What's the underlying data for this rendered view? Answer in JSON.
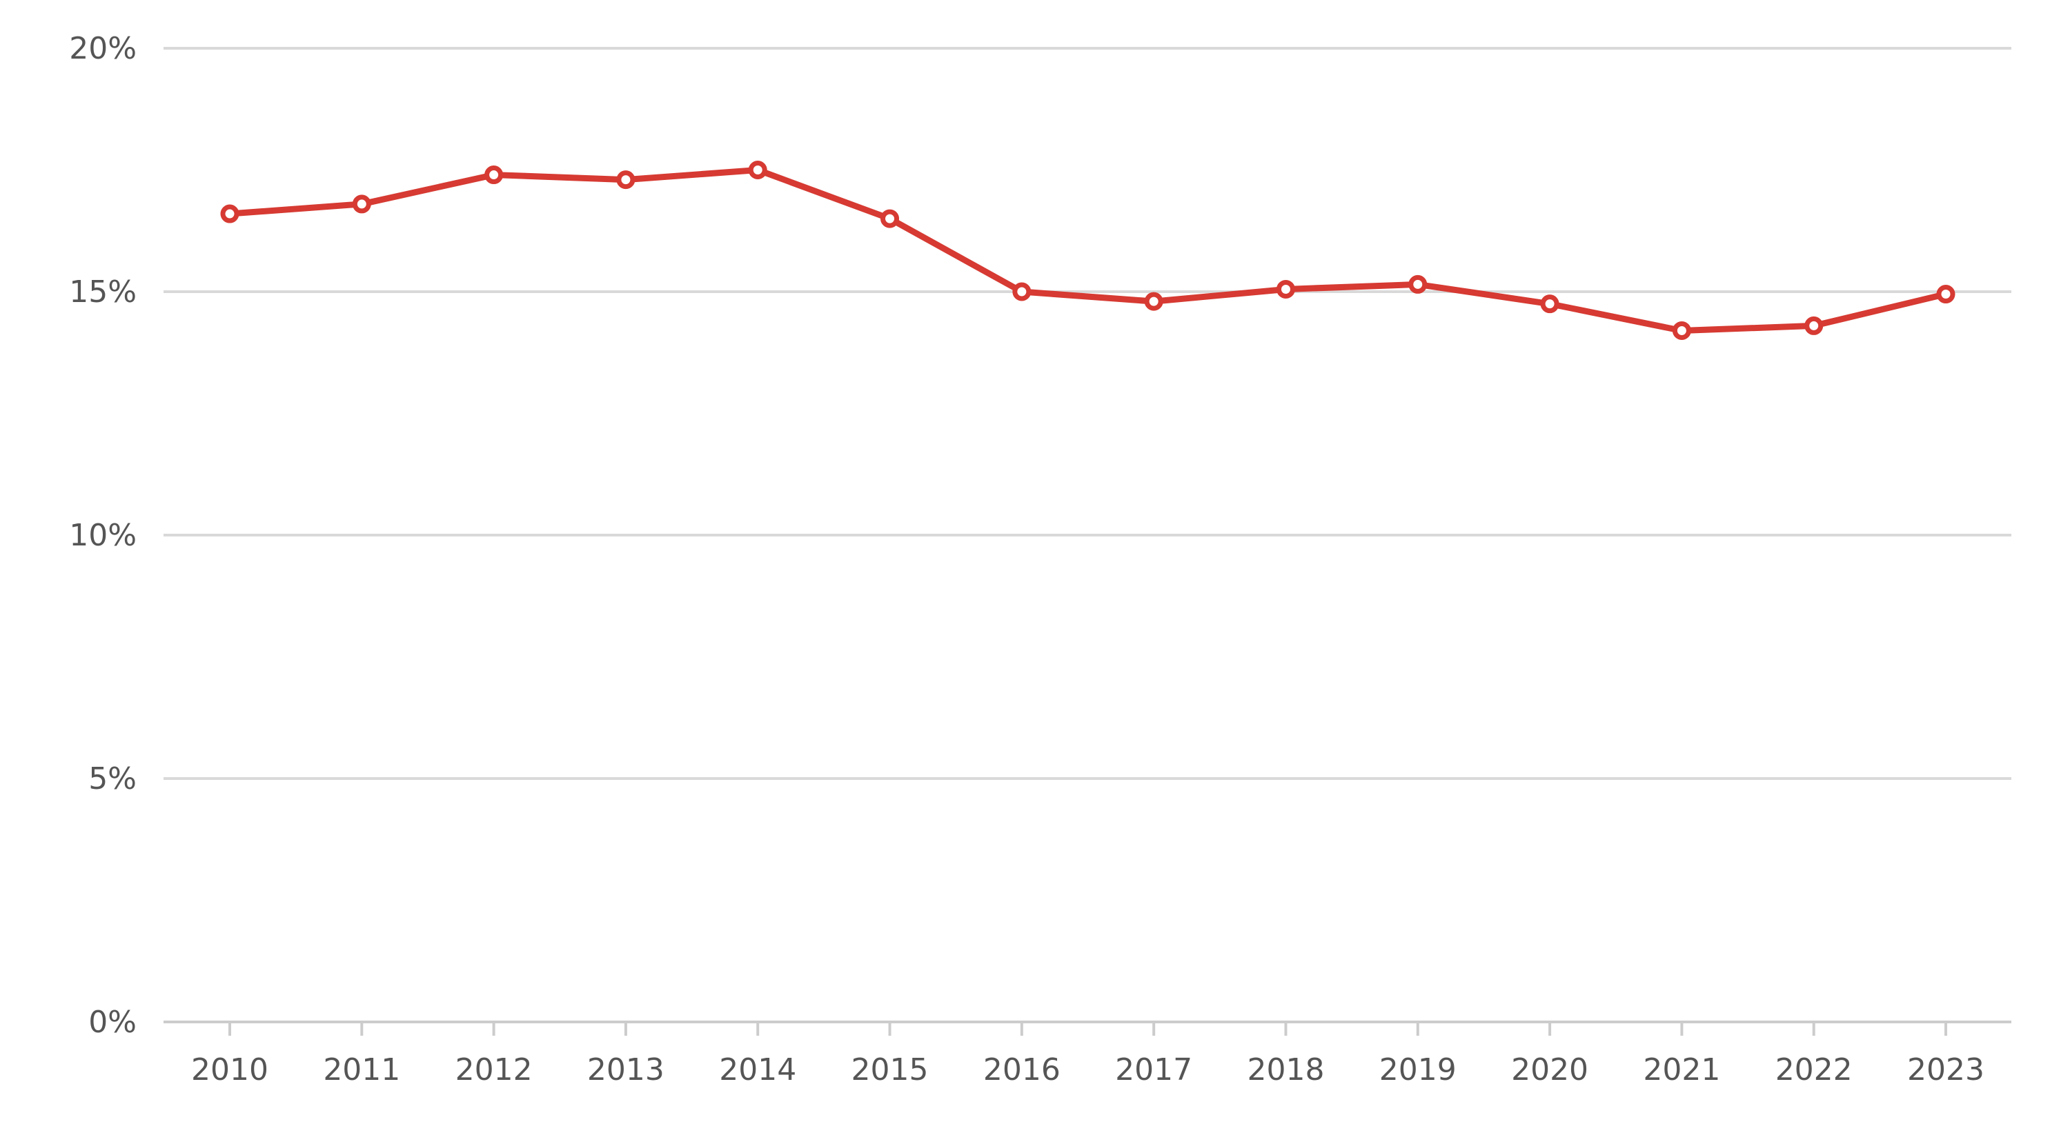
{
  "chart_data": {
    "type": "line",
    "title": "",
    "xlabel": "",
    "ylabel": "",
    "ylim": [
      0,
      20
    ],
    "yticks": [
      0,
      5,
      10,
      15,
      20
    ],
    "ytick_labels": [
      "0%",
      "5%",
      "10%",
      "15%",
      "20%"
    ],
    "y_unit": "%",
    "categories": [
      "2010",
      "2011",
      "2012",
      "2013",
      "2014",
      "2015",
      "2016",
      "2017",
      "2018",
      "2019",
      "2020",
      "2021",
      "2022",
      "2023"
    ],
    "series": [
      {
        "values": [
          16.6,
          16.8,
          17.4,
          17.3,
          17.5,
          16.5,
          15.0,
          14.8,
          15.05,
          15.15,
          14.75,
          14.2,
          14.3,
          14.95
        ]
      }
    ],
    "grid": "horizontal",
    "legend": "none",
    "colors": {
      "line": "#d63a32",
      "marker_fill": "#ffffff",
      "grid": "#d9d9d9",
      "axis": "#cccccc",
      "text": "#555555"
    }
  }
}
